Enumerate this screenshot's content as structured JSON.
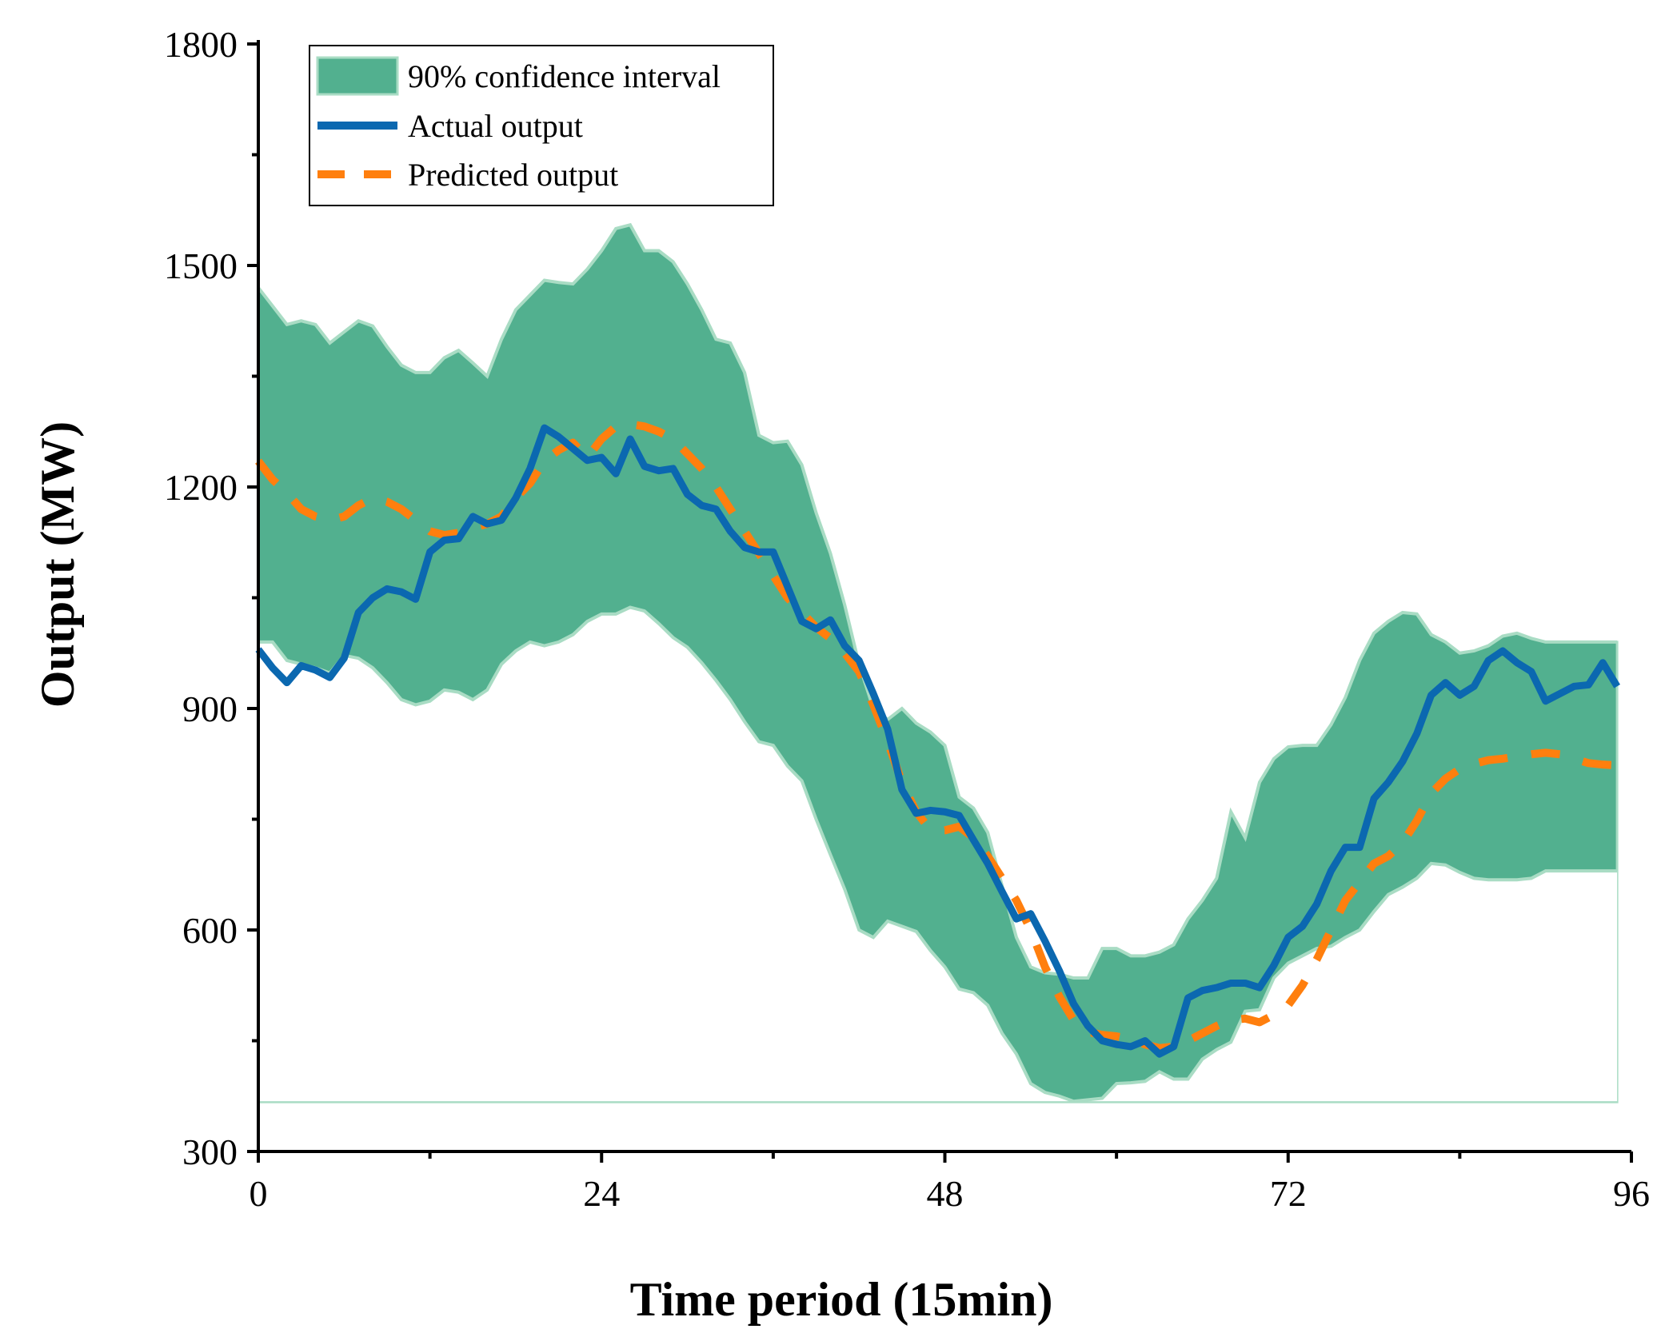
{
  "chart_data": {
    "type": "line",
    "title": "",
    "xlabel": "Time period (15min)",
    "ylabel": "Output (MW)",
    "xlim": [
      0,
      96
    ],
    "ylim": [
      300,
      1800
    ],
    "xticks": [
      0,
      24,
      48,
      72,
      96
    ],
    "yticks": [
      300,
      600,
      900,
      1200,
      1500,
      1800
    ],
    "x_minor_tick_step": 12,
    "y_minor_tick_step": 150,
    "legend_position": "top-left",
    "colors": {
      "band_fill": "#52b08f",
      "band_edge": "#a9dcc4",
      "actual": "#0b68b0",
      "predicted": "#ff7f0e"
    },
    "band_baseline": 367,
    "series": [
      {
        "name": "90% confidence interval",
        "kind": "band",
        "x": [
          0,
          1,
          2,
          3,
          4,
          5,
          6,
          7,
          8,
          9,
          10,
          11,
          12,
          13,
          14,
          15,
          16,
          17,
          18,
          19,
          20,
          21,
          22,
          23,
          24,
          25,
          26,
          27,
          28,
          29,
          30,
          31,
          32,
          33,
          34,
          35,
          36,
          37,
          38,
          39,
          40,
          41,
          42,
          43,
          44,
          45,
          46,
          47,
          48,
          49,
          50,
          51,
          52,
          53,
          54,
          55,
          56,
          57,
          58,
          59,
          60,
          61,
          62,
          63,
          64,
          65,
          66,
          67,
          68,
          69,
          70,
          71,
          72,
          73,
          74,
          75,
          76,
          77,
          78,
          79,
          80,
          81,
          82,
          83,
          84,
          85,
          86,
          87,
          88,
          89,
          90,
          91,
          92,
          93,
          94,
          95
        ],
        "lower": [
          990,
          990,
          965,
          960,
          955,
          948,
          972,
          968,
          955,
          935,
          912,
          905,
          910,
          925,
          922,
          912,
          925,
          960,
          978,
          990,
          985,
          990,
          1000,
          1018,
          1028,
          1028,
          1037,
          1032,
          1015,
          996,
          983,
          962,
          938,
          912,
          882,
          855,
          850,
          822,
          802,
          750,
          702,
          655,
          600,
          590,
          612,
          605,
          598,
          572,
          550,
          520,
          515,
          498,
          460,
          432,
          392,
          380,
          375,
          368,
          370,
          372,
          392,
          393,
          395,
          408,
          398,
          398,
          425,
          438,
          448,
          490,
          492,
          535,
          555,
          565,
          575,
          578,
          590,
          600,
          625,
          648,
          658,
          670,
          690,
          688,
          678,
          670,
          668,
          668,
          668,
          670,
          680,
          680,
          680,
          680,
          680,
          680
        ],
        "upper": [
          1470,
          1445,
          1420,
          1425,
          1420,
          1395,
          1410,
          1425,
          1418,
          1390,
          1365,
          1355,
          1355,
          1375,
          1385,
          1368,
          1350,
          1400,
          1440,
          1460,
          1480,
          1477,
          1475,
          1495,
          1520,
          1550,
          1555,
          1520,
          1520,
          1505,
          1475,
          1440,
          1400,
          1395,
          1355,
          1270,
          1260,
          1262,
          1230,
          1165,
          1110,
          1040,
          960,
          900,
          885,
          900,
          880,
          868,
          850,
          780,
          765,
          732,
          660,
          590,
          550,
          542,
          540,
          535,
          535,
          575,
          575,
          565,
          565,
          570,
          580,
          615,
          640,
          670,
          760,
          725,
          800,
          832,
          848,
          850,
          850,
          878,
          915,
          965,
          1002,
          1018,
          1030,
          1028,
          1000,
          990,
          975,
          978,
          985,
          998,
          1002,
          995,
          990,
          990,
          990,
          990,
          990,
          990
        ]
      },
      {
        "name": "Actual output",
        "kind": "line",
        "x": [
          0,
          1,
          2,
          3,
          4,
          5,
          6,
          7,
          8,
          9,
          10,
          11,
          12,
          13,
          14,
          15,
          16,
          17,
          18,
          19,
          20,
          21,
          22,
          23,
          24,
          25,
          26,
          27,
          28,
          29,
          30,
          31,
          32,
          33,
          34,
          35,
          36,
          37,
          38,
          39,
          40,
          41,
          42,
          43,
          44,
          45,
          46,
          47,
          48,
          49,
          50,
          51,
          52,
          53,
          54,
          55,
          56,
          57,
          58,
          59,
          60,
          61,
          62,
          63,
          64,
          65,
          66,
          67,
          68,
          69,
          70,
          71,
          72,
          73,
          74,
          75,
          76,
          77,
          78,
          79,
          80,
          81,
          82,
          83,
          84,
          85,
          86,
          87,
          88,
          89,
          90,
          91,
          92,
          93,
          94,
          95
        ],
        "values": [
          980,
          955,
          935,
          958,
          952,
          942,
          968,
          1030,
          1050,
          1062,
          1058,
          1048,
          1112,
          1128,
          1130,
          1160,
          1150,
          1155,
          1185,
          1225,
          1280,
          1268,
          1252,
          1236,
          1240,
          1218,
          1265,
          1228,
          1222,
          1225,
          1190,
          1175,
          1170,
          1140,
          1118,
          1112,
          1112,
          1065,
          1018,
          1008,
          1020,
          985,
          965,
          920,
          872,
          790,
          758,
          762,
          760,
          755,
          722,
          690,
          652,
          615,
          622,
          585,
          545,
          500,
          470,
          450,
          445,
          442,
          450,
          432,
          442,
          508,
          518,
          522,
          528,
          528,
          522,
          552,
          590,
          605,
          635,
          680,
          712,
          712,
          778,
          800,
          828,
          866,
          918,
          935,
          918,
          930,
          965,
          978,
          962,
          950,
          910,
          920,
          930,
          932,
          962,
          930
        ]
      },
      {
        "name": "Predicted output",
        "kind": "dashed-line",
        "x": [
          0,
          1,
          2,
          3,
          4,
          5,
          6,
          7,
          8,
          9,
          10,
          11,
          12,
          13,
          14,
          15,
          16,
          17,
          18,
          19,
          20,
          21,
          22,
          23,
          24,
          25,
          26,
          27,
          28,
          29,
          30,
          31,
          32,
          33,
          34,
          35,
          36,
          37,
          38,
          39,
          40,
          41,
          42,
          43,
          44,
          45,
          46,
          47,
          48,
          49,
          50,
          51,
          52,
          53,
          54,
          55,
          56,
          57,
          58,
          59,
          60,
          61,
          62,
          63,
          64,
          65,
          66,
          67,
          68,
          69,
          70,
          71,
          72,
          73,
          74,
          75,
          76,
          77,
          78,
          79,
          80,
          81,
          82,
          83,
          84,
          85,
          86,
          87,
          88,
          89,
          90,
          91,
          92,
          93,
          94,
          95
        ],
        "values": [
          1235,
          1210,
          1192,
          1170,
          1160,
          1155,
          1160,
          1175,
          1185,
          1180,
          1170,
          1155,
          1140,
          1135,
          1138,
          1145,
          1150,
          1160,
          1185,
          1205,
          1235,
          1250,
          1260,
          1240,
          1265,
          1282,
          1285,
          1282,
          1275,
          1265,
          1245,
          1225,
          1200,
          1170,
          1140,
          1110,
          1080,
          1050,
          1030,
          1010,
          995,
          975,
          950,
          905,
          855,
          800,
          760,
          735,
          735,
          740,
          725,
          700,
          670,
          640,
          600,
          550,
          510,
          478,
          462,
          458,
          456,
          452,
          445,
          440,
          442,
          450,
          460,
          470,
          478,
          480,
          475,
          485,
          498,
          525,
          560,
          600,
          640,
          665,
          690,
          700,
          718,
          748,
          785,
          805,
          818,
          825,
          830,
          832,
          835,
          838,
          840,
          838,
          832,
          826,
          824,
          823
        ]
      }
    ]
  }
}
